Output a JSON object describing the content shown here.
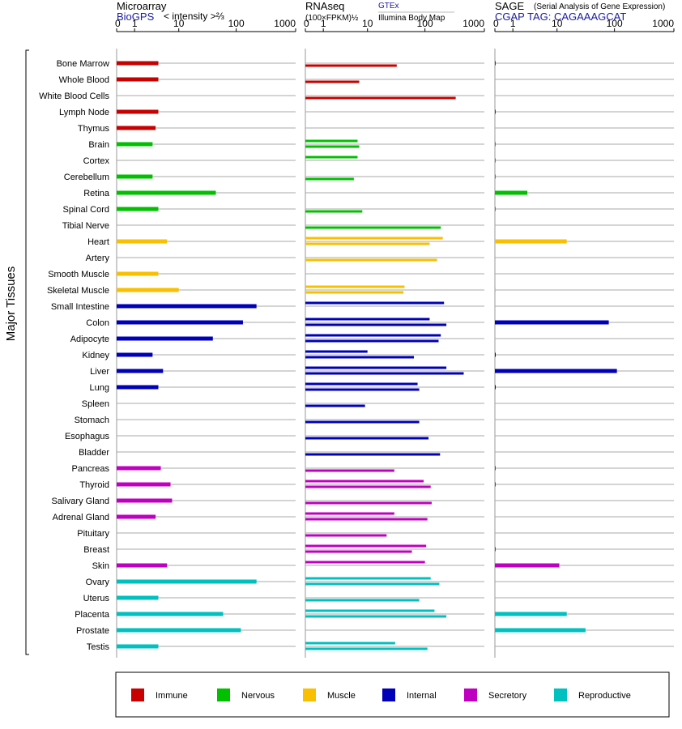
{
  "chart_data": {
    "type": "bar",
    "y_axis_label": "Major Tissues",
    "tick_labels": [
      "0",
      "1",
      "10",
      "100",
      "1000"
    ],
    "tissues": [
      "Bone Marrow",
      "Whole Blood",
      "White Blood Cells",
      "Lymph Node",
      "Thymus",
      "Brain",
      "Cortex",
      "Cerebellum",
      "Retina",
      "Spinal Cord",
      "Tibial Nerve",
      "Heart",
      "Artery",
      "Smooth Muscle",
      "Skeletal Muscle",
      "Small Intestine",
      "Colon",
      "Adipocyte",
      "Kidney",
      "Liver",
      "Lung",
      "Spleen",
      "Stomach",
      "Esophagus",
      "Bladder",
      "Pancreas",
      "Thyroid",
      "Salivary Gland",
      "Adrenal Gland",
      "Pituitary",
      "Breast",
      "Skin",
      "Ovary",
      "Uterus",
      "Placenta",
      "Prostate",
      "Testis"
    ],
    "groups": [
      "Immune",
      "Immune",
      "Immune",
      "Immune",
      "Immune",
      "Nervous",
      "Nervous",
      "Nervous",
      "Nervous",
      "Nervous",
      "Nervous",
      "Muscle",
      "Muscle",
      "Muscle",
      "Muscle",
      "Internal",
      "Internal",
      "Internal",
      "Internal",
      "Internal",
      "Internal",
      "Internal",
      "Internal",
      "Internal",
      "Internal",
      "Secretory",
      "Secretory",
      "Secretory",
      "Secretory",
      "Secretory",
      "Secretory",
      "Secretory",
      "Reproductive",
      "Reproductive",
      "Reproductive",
      "Reproductive",
      "Reproductive"
    ],
    "panels": [
      {
        "title": "Microarray",
        "subtitle_link": "BioGPS",
        "subtitle_text": "< intensity >⅔",
        "link2": "",
        "link2_sub": "",
        "values": [
          4,
          4,
          null,
          4,
          3.5,
          3,
          null,
          3,
          45,
          4,
          null,
          6,
          null,
          4,
          10,
          220,
          130,
          40,
          3,
          5,
          4,
          null,
          null,
          null,
          null,
          4.5,
          7,
          7.5,
          3.5,
          null,
          null,
          6,
          220,
          4,
          60,
          120,
          4
        ]
      },
      {
        "title": "RNAseq",
        "subtitle_link": "",
        "subtitle_text": "(100×FPKM)½",
        "link2": "GTEx",
        "link2_sub": "Illumina Body Map",
        "values": [
          [
            null,
            33
          ],
          [
            null,
            7
          ],
          [
            null,
            330
          ],
          [
            null,
            null
          ],
          [
            null,
            null
          ],
          [
            6.5,
            7
          ],
          [
            6.5,
            null
          ],
          [
            null,
            5.5
          ],
          [
            null,
            null
          ],
          [
            null,
            8
          ],
          [
            null,
            185
          ],
          [
            200,
            120
          ],
          [
            null,
            160
          ],
          [
            null,
            null
          ],
          [
            45,
            43
          ],
          [
            210,
            null
          ],
          [
            120,
            230
          ],
          [
            185,
            170
          ],
          [
            10,
            65
          ],
          [
            230,
            450
          ],
          [
            75,
            80
          ],
          [
            null,
            9
          ],
          [
            null,
            80
          ],
          [
            null,
            115
          ],
          [
            null,
            180
          ],
          [
            null,
            30
          ],
          [
            95,
            125
          ],
          [
            null,
            130
          ],
          [
            30,
            110
          ],
          [
            null,
            22
          ],
          [
            105,
            60
          ],
          [
            100,
            null
          ],
          [
            125,
            175
          ],
          [
            null,
            80
          ],
          [
            145,
            230
          ],
          [
            null,
            null
          ],
          [
            31,
            110
          ]
        ]
      },
      {
        "title": "SAGE",
        "subtitle_link": "",
        "subtitle_text": "(Serial Analysis of Gene Expression)",
        "link2": "CGAP TAG: CAGAAAGCAT",
        "link2_sub": "",
        "values": [
          0.02,
          null,
          null,
          0.02,
          null,
          0.01,
          0.01,
          0.01,
          2.5,
          0.01,
          null,
          15,
          null,
          null,
          0.01,
          null,
          80,
          null,
          0.02,
          110,
          0.02,
          null,
          null,
          null,
          null,
          0.02,
          0.02,
          null,
          null,
          null,
          0.02,
          11,
          null,
          null,
          15,
          32,
          null
        ]
      }
    ],
    "legend": [
      {
        "label": "Immune",
        "color": "#c80000"
      },
      {
        "label": "Nervous",
        "color": "#00c000"
      },
      {
        "label": "Muscle",
        "color": "#f8c000"
      },
      {
        "label": "Internal",
        "color": "#0000b8"
      },
      {
        "label": "Secretory",
        "color": "#c000c0"
      },
      {
        "label": "Reproductive",
        "color": "#00c0c0"
      }
    ]
  }
}
